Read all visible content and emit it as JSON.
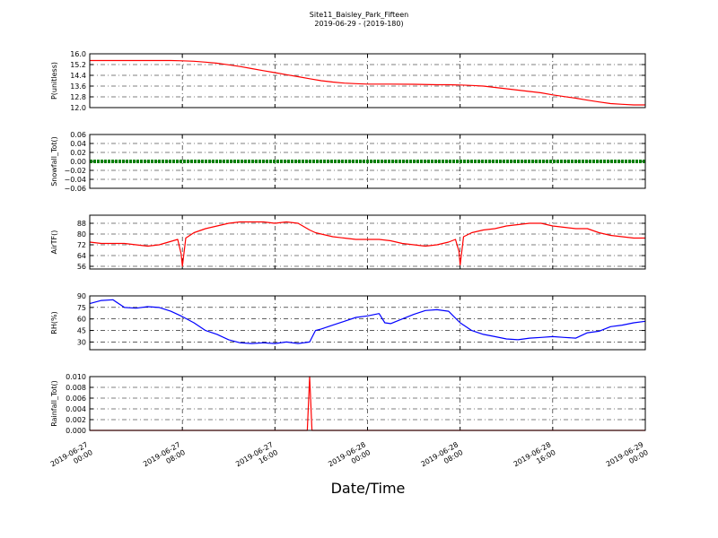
{
  "figure": {
    "title": "Site11_Baisley_Park_Fifteen",
    "subtitle": "2019-06-29 - (2019-180)",
    "xlabel": "Date/Time",
    "x_ticks": [
      {
        "line1": "2019-06-27",
        "line2": "00:00"
      },
      {
        "line1": "2019-06-27",
        "line2": "08:00"
      },
      {
        "line1": "2019-06-27",
        "line2": "16:00"
      },
      {
        "line1": "2019-06-28",
        "line2": "00:00"
      },
      {
        "line1": "2019-06-28",
        "line2": "08:00"
      },
      {
        "line1": "2019-06-28",
        "line2": "16:00"
      },
      {
        "line1": "2019-06-29",
        "line2": "00:00"
      }
    ]
  },
  "chart_data": [
    {
      "type": "line",
      "ylabel": "P(unitless)",
      "color": "#ff0000",
      "ylim": [
        12.0,
        16.0
      ],
      "yticks": [
        "12.0",
        "12.8",
        "13.6",
        "14.4",
        "15.2",
        "16.0"
      ],
      "xlim_hours": [
        0,
        48
      ],
      "x": [
        0,
        2,
        4,
        6,
        7,
        8,
        9,
        10,
        11,
        12,
        13,
        14,
        15,
        16,
        17,
        18,
        19,
        20,
        21,
        22,
        23,
        24,
        26,
        28,
        30,
        31,
        32,
        33,
        34,
        35,
        36,
        37,
        38,
        39,
        40,
        41,
        42,
        43,
        44,
        45,
        46,
        47,
        48
      ],
      "values": [
        15.5,
        15.5,
        15.5,
        15.5,
        15.5,
        15.48,
        15.45,
        15.38,
        15.3,
        15.18,
        15.05,
        14.9,
        14.75,
        14.6,
        14.45,
        14.3,
        14.15,
        14.0,
        13.9,
        13.82,
        13.78,
        13.75,
        13.75,
        13.73,
        13.7,
        13.7,
        13.68,
        13.65,
        13.6,
        13.5,
        13.4,
        13.3,
        13.2,
        13.1,
        12.95,
        12.82,
        12.7,
        12.55,
        12.42,
        12.3,
        12.25,
        12.2,
        12.2
      ]
    },
    {
      "type": "line",
      "ylabel": "Snowfall_Tot()",
      "color": "#008000",
      "ylim": [
        -0.06,
        0.06
      ],
      "yticks": [
        "−0.06",
        "−0.04",
        "−0.02",
        "0.00",
        "0.02",
        "0.04",
        "0.06"
      ],
      "xlim_hours": [
        0,
        48
      ],
      "x": [
        0,
        48
      ],
      "values": [
        0,
        0
      ]
    },
    {
      "type": "line",
      "ylabel": "AirTF()",
      "color": "#ff0000",
      "ylim": [
        54,
        94
      ],
      "yticks": [
        "56",
        "64",
        "72",
        "80",
        "88"
      ],
      "xlim_hours": [
        0,
        48
      ],
      "x": [
        0,
        1,
        2,
        3,
        4,
        5,
        6,
        6.8,
        7.6,
        7.9,
        8.0,
        8.3,
        9,
        10,
        11,
        12,
        13,
        14,
        15,
        16,
        17,
        18,
        19,
        19.5,
        20,
        21,
        22,
        23,
        24,
        25,
        26,
        27,
        28,
        29,
        30,
        31,
        31.6,
        31.9,
        32.0,
        32.3,
        33,
        34,
        35,
        36,
        37,
        38,
        39,
        40,
        41,
        42,
        43,
        44,
        45,
        46,
        47,
        48
      ],
      "values": [
        74,
        73,
        73,
        73,
        72,
        71,
        72,
        74,
        76,
        65,
        56,
        77,
        81,
        84,
        86,
        88,
        89,
        89,
        89,
        88,
        89,
        88,
        83,
        81,
        80,
        78,
        77,
        76,
        76,
        76,
        75,
        73,
        72,
        71,
        72,
        74,
        76,
        67,
        57,
        78,
        81,
        83,
        84,
        86,
        87,
        88,
        88,
        86,
        85,
        84,
        84,
        81,
        79,
        78,
        77,
        77
      ]
    },
    {
      "type": "line",
      "ylabel": "RH(%)",
      "color": "#0000ff",
      "ylim": [
        20,
        90
      ],
      "yticks": [
        "30",
        "45",
        "60",
        "75",
        "90"
      ],
      "xlim_hours": [
        0,
        48
      ],
      "x": [
        0,
        1,
        2,
        3,
        4,
        5,
        6,
        7,
        8,
        9,
        10,
        11,
        12,
        13,
        14,
        15,
        16,
        17,
        18,
        19,
        19.5,
        20,
        21,
        22,
        23,
        24,
        25,
        25.5,
        26,
        27,
        28,
        29,
        30,
        31,
        32,
        33,
        34,
        35,
        36,
        37,
        38,
        39,
        40,
        41,
        42,
        43,
        44,
        45,
        46,
        47,
        48
      ],
      "values": [
        80,
        84,
        85,
        75,
        74,
        76,
        75,
        70,
        63,
        55,
        45,
        40,
        33,
        29,
        28,
        29,
        28,
        30,
        28,
        30,
        45,
        47,
        52,
        57,
        62,
        64,
        67,
        55,
        54,
        60,
        66,
        71,
        72,
        70,
        55,
        45,
        40,
        37,
        34,
        33,
        35,
        36,
        37,
        36,
        35,
        42,
        44,
        50,
        52,
        55,
        57
      ]
    },
    {
      "type": "line",
      "ylabel": "Rainfall_Tot()",
      "color": "#ff0000",
      "ylim": [
        0,
        0.01
      ],
      "yticks": [
        "0.000",
        "0.002",
        "0.004",
        "0.006",
        "0.008",
        "0.010"
      ],
      "xlim_hours": [
        0,
        48
      ],
      "x": [
        0,
        18.8,
        19.0,
        19.2,
        48
      ],
      "values": [
        0,
        0,
        0.01,
        0,
        0
      ]
    }
  ]
}
